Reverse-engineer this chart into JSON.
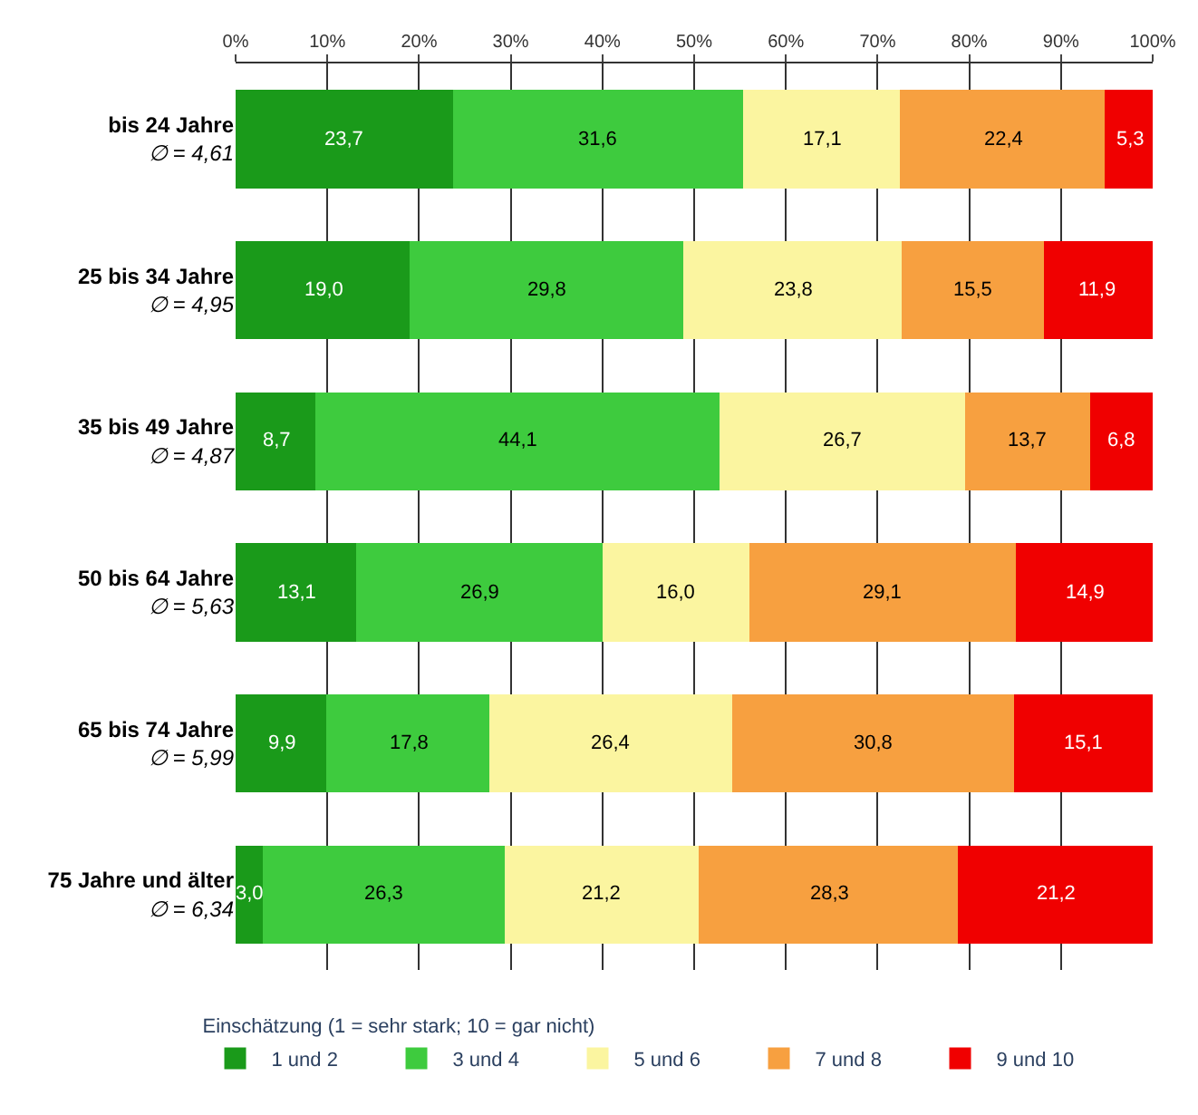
{
  "chart_data": {
    "type": "bar",
    "orientation": "horizontal",
    "stacked": true,
    "categories": [
      "bis 24 Jahre\n∅ = 4,61",
      "25 bis 34 Jahre\n∅ = 4,95",
      "35 bis 49 Jahre\n∅ = 4,87",
      "50 bis 64 Jahre\n∅ = 5,63",
      "65 bis 74 Jahre\n∅ = 5,99",
      "75 Jahre und älter\n∅ = 6,34"
    ],
    "series": [
      {
        "name": "1 und 2",
        "color": "#1a9a1a",
        "values": [
          23.7,
          19.0,
          8.7,
          13.1,
          9.9,
          3.0
        ],
        "value_labels": [
          "23,7",
          "19,0",
          "8,7",
          "13,1",
          "9,9",
          "3,0"
        ]
      },
      {
        "name": "3 und 4",
        "color": "#3ecb3e",
        "values": [
          31.6,
          29.8,
          44.1,
          26.9,
          17.8,
          26.3
        ],
        "value_labels": [
          "31,6",
          "29,8",
          "44,1",
          "26,9",
          "17,8",
          "26,3"
        ]
      },
      {
        "name": "5 und 6",
        "color": "#fbf5a0",
        "values": [
          17.1,
          23.8,
          26.7,
          16.0,
          26.4,
          21.2
        ],
        "value_labels": [
          "17,1",
          "23,8",
          "26,7",
          "16,0",
          "26,4",
          "21,2"
        ]
      },
      {
        "name": "7 und 8",
        "color": "#f7a040",
        "values": [
          22.4,
          15.5,
          13.7,
          29.1,
          30.8,
          28.3
        ],
        "value_labels": [
          "22,4",
          "15,5",
          "13,7",
          "29,1",
          "30,8",
          "28,3"
        ]
      },
      {
        "name": "9 und 10",
        "color": "#f00000",
        "values": [
          5.3,
          11.9,
          6.8,
          14.9,
          15.1,
          21.2
        ],
        "value_labels": [
          "5,3",
          "11,9",
          "6,8",
          "14,9",
          "15,1",
          "21,2"
        ]
      }
    ],
    "xlim": [
      0,
      100
    ],
    "xticks": [
      {
        "value": 0,
        "label": "0%"
      },
      {
        "value": 10,
        "label": "10%"
      },
      {
        "value": 20,
        "label": "20%"
      },
      {
        "value": 30,
        "label": "30%"
      },
      {
        "value": 40,
        "label": "40%"
      },
      {
        "value": 50,
        "label": "50%"
      },
      {
        "value": 60,
        "label": "60%"
      },
      {
        "value": 70,
        "label": "70%"
      },
      {
        "value": 80,
        "label": "80%"
      },
      {
        "value": 90,
        "label": "90%"
      },
      {
        "value": 100,
        "label": "100%"
      }
    ],
    "grid": "x",
    "legend": "bottom",
    "legend_title": "Einschätzung (1 = sehr stark; 10 = gar nicht)"
  }
}
